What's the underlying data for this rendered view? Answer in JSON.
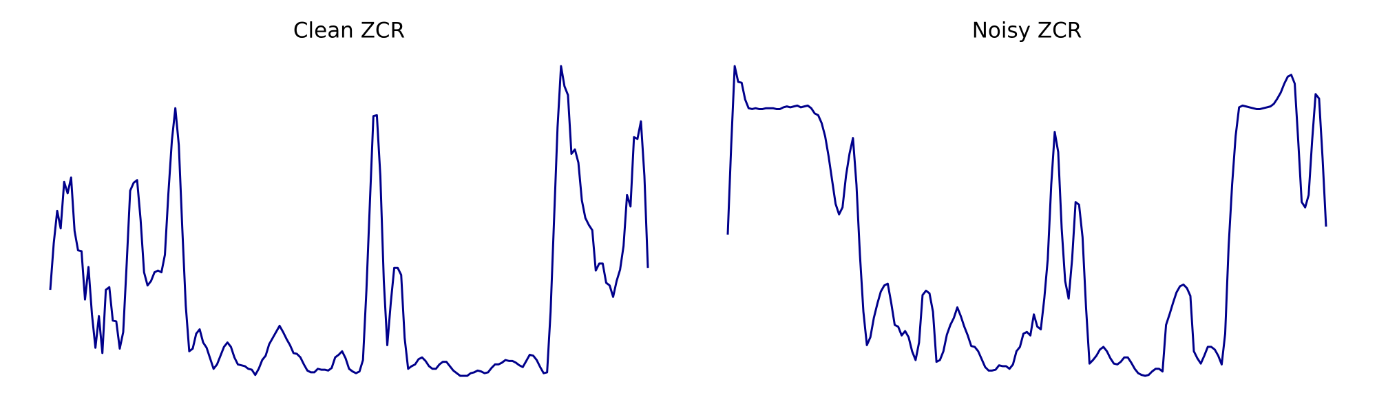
{
  "chart_data": [
    {
      "type": "line",
      "title": "Clean ZCR",
      "color": "#00008b",
      "ylim": [
        0,
        353
      ],
      "values": [
        98,
        151,
        188,
        168,
        221,
        208,
        226,
        165,
        143,
        142,
        87,
        124,
        70,
        32,
        68,
        26,
        98,
        101,
        63,
        62,
        31,
        50,
        128,
        211,
        220,
        223,
        178,
        118,
        103,
        108,
        118,
        120,
        118,
        138,
        208,
        268,
        305,
        263,
        168,
        80,
        28,
        31,
        48,
        53,
        38,
        32,
        20,
        8,
        13,
        23,
        33,
        38,
        33,
        21,
        13,
        12,
        11,
        8,
        7,
        1,
        8,
        18,
        23,
        36,
        43,
        50,
        57,
        50,
        42,
        35,
        26,
        25,
        21,
        13,
        6,
        4,
        4,
        8,
        7,
        7,
        6,
        9,
        21,
        24,
        28,
        20,
        8,
        5,
        3,
        5,
        18,
        98,
        198,
        296,
        297,
        228,
        108,
        35,
        83,
        123,
        123,
        115,
        43,
        8,
        11,
        13,
        19,
        21,
        17,
        11,
        8,
        8,
        13,
        16,
        16,
        11,
        6,
        3,
        0,
        0,
        0,
        3,
        4,
        6,
        5,
        3,
        4,
        9,
        13,
        13,
        15,
        18,
        17,
        17,
        15,
        12,
        10,
        17,
        24,
        23,
        18,
        10,
        3,
        4,
        73,
        178,
        283,
        353,
        330,
        320,
        253,
        258,
        243,
        200,
        180,
        172,
        166,
        120,
        128,
        128,
        106,
        103,
        90,
        108,
        121,
        148,
        206,
        193,
        272,
        270,
        290,
        228,
        123
      ]
    },
    {
      "type": "line",
      "title": "Noisy ZCR",
      "color": "#00008b",
      "ylim": [
        0,
        353
      ],
      "values": [
        161,
        263,
        353,
        335,
        334,
        315,
        305,
        304,
        305,
        304,
        304,
        305,
        305,
        305,
        304,
        304,
        306,
        307,
        306,
        307,
        308,
        306,
        307,
        308,
        305,
        299,
        297,
        288,
        273,
        250,
        223,
        196,
        184,
        192,
        228,
        253,
        271,
        218,
        138,
        73,
        35,
        44,
        66,
        82,
        96,
        103,
        105,
        83,
        58,
        56,
        46,
        51,
        44,
        28,
        18,
        38,
        92,
        97,
        94,
        73,
        16,
        18,
        28,
        47,
        58,
        66,
        78,
        68,
        56,
        46,
        34,
        33,
        28,
        19,
        10,
        6,
        6,
        7,
        12,
        11,
        11,
        8,
        13,
        28,
        33,
        48,
        50,
        46,
        70,
        56,
        53,
        88,
        133,
        218,
        278,
        255,
        168,
        108,
        88,
        133,
        198,
        195,
        158,
        78,
        14,
        18,
        23,
        30,
        33,
        28,
        20,
        14,
        13,
        16,
        21,
        21,
        15,
        8,
        3,
        1,
        0,
        1,
        5,
        8,
        8,
        5,
        58,
        70,
        83,
        95,
        102,
        104,
        100,
        91,
        28,
        20,
        14,
        23,
        33,
        33,
        30,
        23,
        13,
        48,
        148,
        218,
        273,
        306,
        308,
        307,
        306,
        305,
        304,
        304,
        305,
        306,
        307,
        310,
        316,
        323,
        333,
        341,
        343,
        333,
        268,
        198,
        192,
        206,
        268,
        321,
        316,
        248,
        170
      ]
    }
  ]
}
